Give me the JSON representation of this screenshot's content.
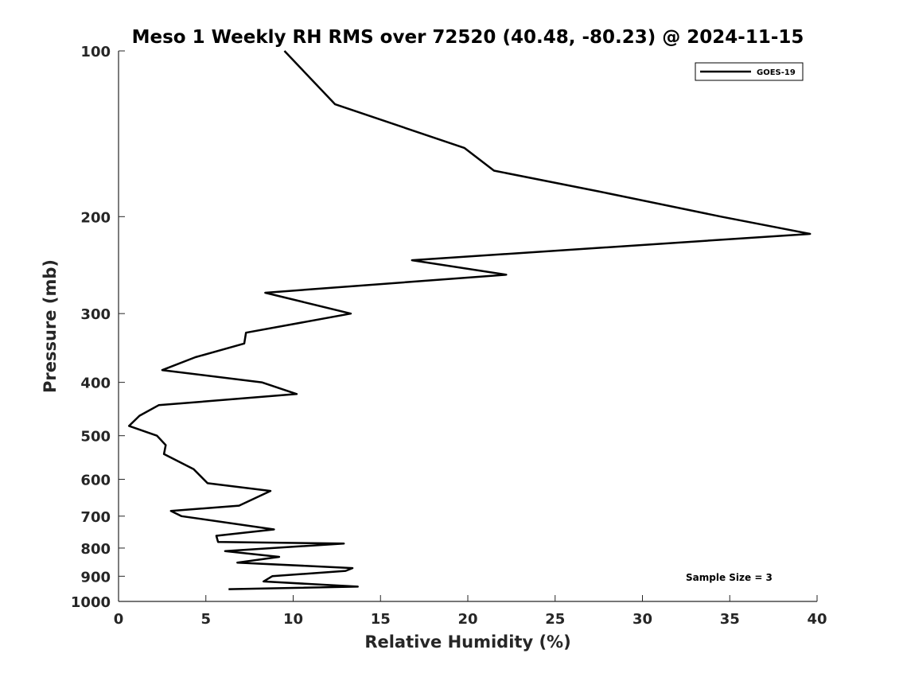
{
  "chart_data": {
    "type": "line",
    "title": "Meso 1 Weekly RH RMS over 72520 (40.48, -80.23) @ 2024-11-15",
    "xlabel": "Relative Humidity (%)",
    "ylabel": "Pressure (mb)",
    "xlim": [
      0,
      40
    ],
    "ylim": [
      100,
      1000
    ],
    "y_scale": "log",
    "y_reversed": true,
    "x_ticks": [
      0,
      5,
      10,
      15,
      20,
      25,
      30,
      35,
      40
    ],
    "y_ticks": [
      100,
      200,
      300,
      400,
      500,
      600,
      700,
      800,
      900,
      1000
    ],
    "grid": false,
    "legend_position": "top-right",
    "annotation": "Sample Size = 3",
    "series": [
      {
        "name": "GOES-19",
        "color": "#000000",
        "x": [
          9.5,
          12.4,
          19.8,
          21.5,
          27.5,
          34.5,
          39.6,
          16.8,
          22.2,
          8.4,
          13.3,
          7.3,
          7.2,
          4.4,
          2.5,
          8.2,
          10.2,
          2.3,
          1.2,
          0.6,
          2.2,
          2.7,
          2.6,
          4.3,
          5.1,
          8.7,
          6.9,
          3.0,
          3.6,
          8.9,
          5.6,
          5.7,
          12.9,
          6.1,
          9.2,
          6.8,
          13.4,
          13.0,
          8.8,
          8.3,
          13.7,
          6.3
        ],
        "y": [
          100,
          125,
          150,
          165,
          180,
          200,
          215,
          240,
          255,
          275,
          300,
          325,
          340,
          360,
          380,
          400,
          420,
          440,
          460,
          480,
          500,
          520,
          540,
          575,
          610,
          630,
          670,
          685,
          700,
          740,
          760,
          780,
          785,
          810,
          830,
          850,
          870,
          880,
          900,
          920,
          940,
          950
        ]
      }
    ]
  }
}
